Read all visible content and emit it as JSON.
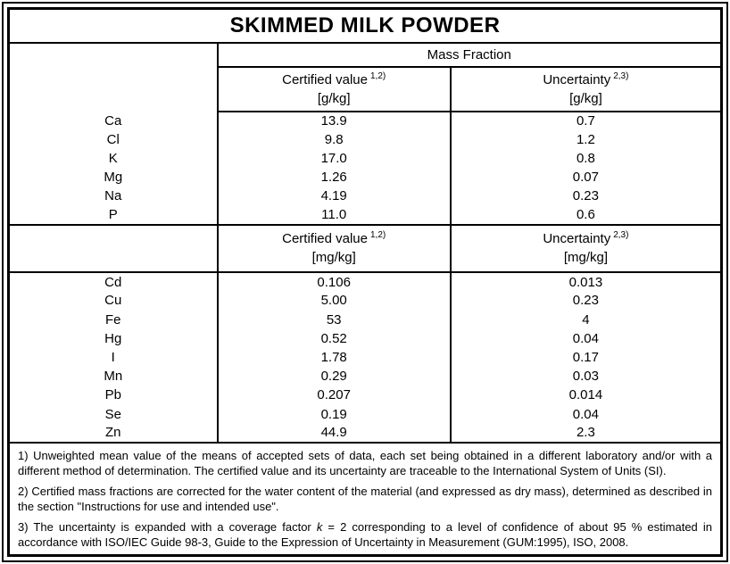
{
  "title": "SKIMMED MILK POWDER",
  "table": {
    "group_header": "Mass Fraction",
    "blocks": [
      {
        "certified_label": "Certified value",
        "certified_sup": "1,2)",
        "certified_unit": "[g/kg]",
        "uncertainty_label": "Uncertainty",
        "uncertainty_sup": "2,3)",
        "uncertainty_unit": "[g/kg]",
        "rows": [
          {
            "element": "Ca",
            "certified": "13.9",
            "uncertainty": "0.7"
          },
          {
            "element": "Cl",
            "certified": "9.8",
            "uncertainty": "1.2"
          },
          {
            "element": "K",
            "certified": "17.0",
            "uncertainty": "0.8"
          },
          {
            "element": "Mg",
            "certified": "1.26",
            "uncertainty": "0.07"
          },
          {
            "element": "Na",
            "certified": "4.19",
            "uncertainty": "0.23"
          },
          {
            "element": "P",
            "certified": "11.0",
            "uncertainty": "0.6"
          }
        ]
      },
      {
        "certified_label": "Certified value",
        "certified_sup": "1,2)",
        "certified_unit": "[mg/kg]",
        "uncertainty_label": "Uncertainty",
        "uncertainty_sup": "2,3)",
        "uncertainty_unit": "[mg/kg]",
        "rows": [
          {
            "element": "Cd",
            "certified": "0.106",
            "uncertainty": "0.013"
          },
          {
            "element": "Cu",
            "certified": "5.00",
            "uncertainty": "0.23"
          },
          {
            "element": "Fe",
            "certified": "53",
            "uncertainty": "4"
          },
          {
            "element": "Hg",
            "certified": "0.52",
            "uncertainty": "0.04"
          },
          {
            "element": "I",
            "certified": "1.78",
            "uncertainty": "0.17"
          },
          {
            "element": "Mn",
            "certified": "0.29",
            "uncertainty": "0.03"
          },
          {
            "element": "Pb",
            "certified": "0.207",
            "uncertainty": "0.014"
          },
          {
            "element": "Se",
            "certified": "0.19",
            "uncertainty": "0.04"
          },
          {
            "element": "Zn",
            "certified": "44.9",
            "uncertainty": "2.3"
          }
        ]
      }
    ]
  },
  "footnotes": {
    "note1": "1) Unweighted mean value of the means of accepted sets of data, each set being obtained in a different laboratory and/or with a different method of determination. The certified value and its uncertainty are traceable to the International System of Units (SI).",
    "note2": "2) Certified mass fractions are corrected for the water content of the material (and expressed as dry mass), determined as described in the section \"Instructions for use and intended use\".",
    "note3_prefix": "3) The uncertainty is expanded with a coverage factor ",
    "note3_k": "k",
    "note3_suffix": " = 2 corresponding to a level of confidence of about 95 % estimated in accordance with ISO/IEC Guide 98-3, Guide to the Expression of Uncertainty in Measurement (GUM:1995), ISO, 2008."
  },
  "colors": {
    "border": "#000000",
    "text": "#000000",
    "background": "#ffffff"
  }
}
